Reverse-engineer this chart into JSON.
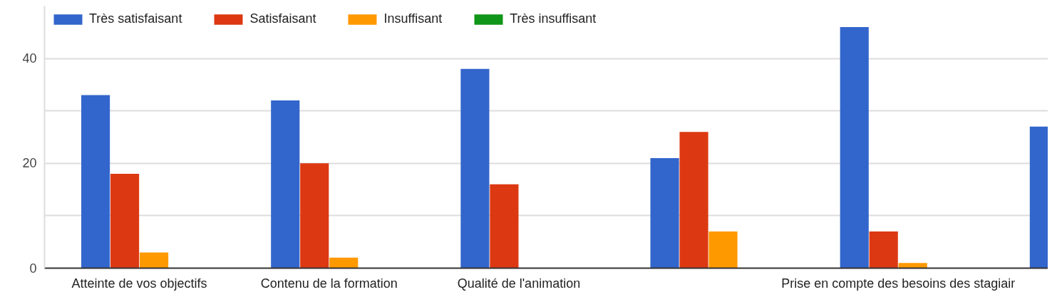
{
  "chart_data": {
    "type": "bar",
    "categories": [
      "Atteinte de vos objectifs",
      "Contenu de la formation",
      "Qualité de l'animation",
      null,
      "Prise en compte des besoins des stagiair",
      null
    ],
    "series": [
      {
        "name": "Très satisfaisant",
        "color": "#3366cc",
        "values": [
          33,
          32,
          38,
          21,
          46,
          27
        ]
      },
      {
        "name": "Satisfaisant",
        "color": "#dc3912",
        "values": [
          18,
          20,
          16,
          26,
          7,
          null
        ]
      },
      {
        "name": "Insuffisant",
        "color": "#ff9900",
        "values": [
          3,
          2,
          0,
          7,
          1,
          null
        ]
      },
      {
        "name": "Très insuffisant",
        "color": "#109618",
        "values": [
          0,
          0,
          0,
          0,
          0,
          null
        ]
      }
    ],
    "ylim": [
      0,
      50
    ],
    "yticks": [
      0,
      {
        "value": 10,
        "label": null
      },
      20,
      {
        "value": 30,
        "label": null
      },
      40
    ],
    "grid": "y",
    "legend": "top left"
  }
}
